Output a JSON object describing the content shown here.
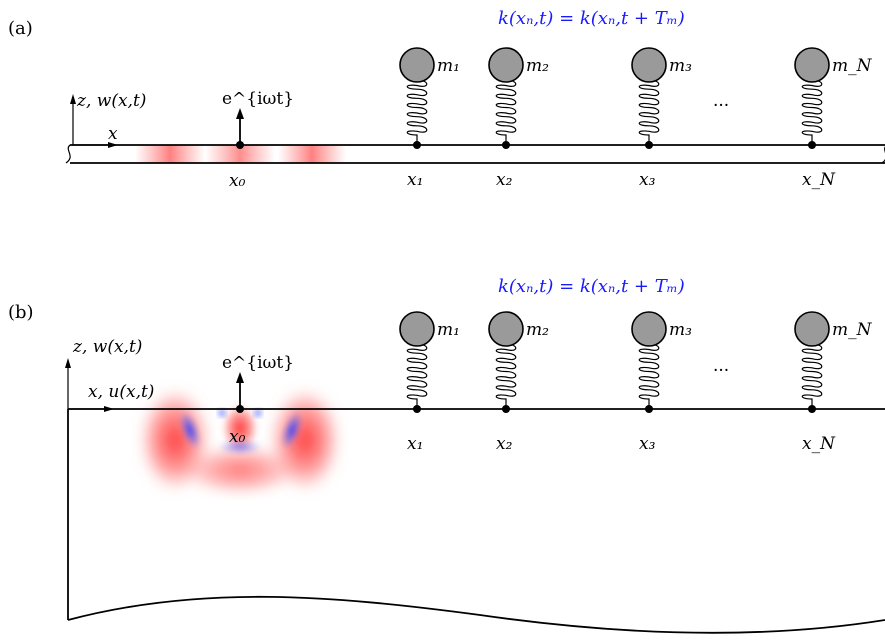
{
  "panel_a": {
    "tag": "(a)",
    "equation": "k(xₙ,t) = k(xₙ,t + Tₘ)",
    "axis_z_label": "z, w(x,t)",
    "axis_x_label": "x",
    "source_label": "e^{iωt}",
    "source_position_label": "x₀",
    "resonators": [
      {
        "mass_label": "m₁",
        "position_label": "x₁"
      },
      {
        "mass_label": "m₂",
        "position_label": "x₂"
      },
      {
        "mass_label": "m₃",
        "position_label": "x₃"
      },
      {
        "mass_label": "m_N",
        "position_label": "x_N"
      }
    ],
    "ellipsis": "···"
  },
  "panel_b": {
    "tag": "(b)",
    "equation": "k(xₙ,t) = k(xₙ,t + Tₘ)",
    "axis_z_label": "z, w(x,t)",
    "axis_x_label": "x, u(x,t)",
    "source_label": "e^{iωt}",
    "source_position_label": "x₀",
    "resonators": [
      {
        "mass_label": "m₁",
        "position_label": "x₁"
      },
      {
        "mass_label": "m₂",
        "position_label": "x₂"
      },
      {
        "mass_label": "m₃",
        "position_label": "x₃"
      },
      {
        "mass_label": "m_N",
        "position_label": "x_N"
      }
    ],
    "ellipsis": "···"
  },
  "colors": {
    "equation": "#1a1aff",
    "mass_fill": "#9a9a9a",
    "field_positive": "#ff3030",
    "field_negative": "#3040ff"
  }
}
